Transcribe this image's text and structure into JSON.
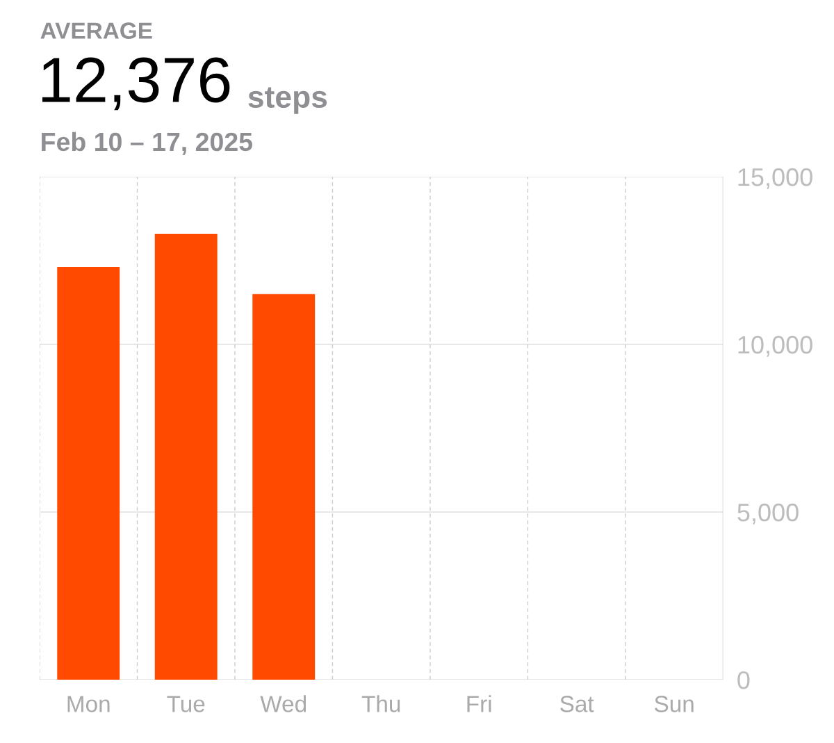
{
  "chart_data": {
    "type": "bar",
    "title": "AVERAGE",
    "subtitle": "Feb 10 – 17, 2025",
    "annotations": [
      "12,376",
      "steps"
    ],
    "categories": [
      "Mon",
      "Tue",
      "Wed",
      "Thu",
      "Fri",
      "Sat",
      "Sun"
    ],
    "values": [
      12300,
      13300,
      11500,
      null,
      null,
      null,
      null
    ],
    "color": "#ff4a00",
    "ylim": [
      0,
      15000
    ],
    "yticks": [
      0,
      {
        "value": 5000,
        "label": "5,000"
      },
      {
        "value": 10000,
        "label": "10,000"
      },
      {
        "value": 15000,
        "label": "15,000"
      }
    ],
    "grid": true
  }
}
